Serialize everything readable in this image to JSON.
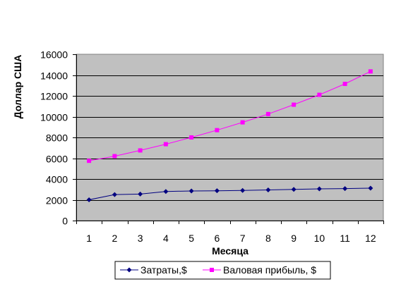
{
  "chart_data": {
    "type": "line",
    "categories": [
      "1",
      "2",
      "3",
      "4",
      "5",
      "6",
      "7",
      "8",
      "9",
      "10",
      "11",
      "12"
    ],
    "series": [
      {
        "name": "Затраты,$",
        "color": "#000080",
        "marker": "diamond",
        "values": [
          2000,
          2500,
          2550,
          2800,
          2850,
          2870,
          2900,
          2950,
          3000,
          3050,
          3080,
          3120
        ]
      },
      {
        "name": "Валовая прибыль, $",
        "color": "#ff00ff",
        "marker": "square",
        "values": [
          5750,
          6200,
          6750,
          7350,
          8000,
          8700,
          9450,
          10250,
          11150,
          12100,
          13150,
          14350
        ]
      }
    ],
    "xlabel": "Месяца",
    "ylabel": "Доллар США",
    "ylim": [
      0,
      16000
    ],
    "yticks": [
      "0",
      "2000",
      "4000",
      "6000",
      "8000",
      "10000",
      "12000",
      "14000",
      "16000"
    ],
    "grid": true,
    "plot_background": "#c0c0c0",
    "legend_position": "bottom"
  }
}
